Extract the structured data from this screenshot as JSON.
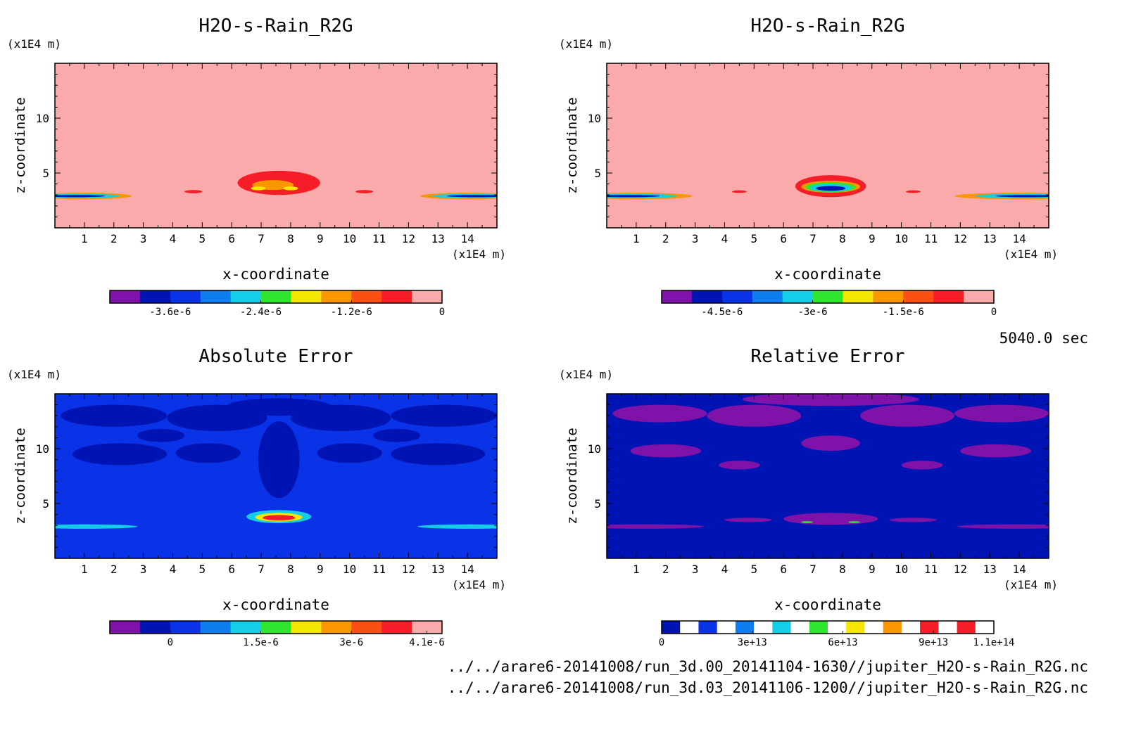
{
  "time_label": "5040.0 sec",
  "files": [
    "../../arare6-20141008/run_3d.00_20141104-1630//jupiter_H2O-s-Rain_R2G.nc",
    "../../arare6-20141008/run_3d.03_20141106-1200//jupiter_H2O-s-Rain_R2G.nc"
  ],
  "colors": {
    "purple": "#7f12a8",
    "navy": "#0014b4",
    "blue": "#0a32e6",
    "mid_blue": "#0e7df0",
    "cyan": "#14cde6",
    "green": "#2ee62e",
    "yellow": "#f5e600",
    "orange": "#fa9600",
    "red_orange": "#fa5014",
    "red": "#f51e28",
    "pink": "#faaaaa"
  },
  "chart_data": [
    {
      "type": "heatmap",
      "title": "H2O-s-Rain_R2G",
      "xlabel": "x-coordinate",
      "ylabel": "z-coordinate",
      "x_unit": "(x1E4 m)",
      "y_unit": "(x1E4 m)",
      "xlim": [
        0,
        15
      ],
      "ylim": [
        0,
        15
      ],
      "x_ticks": [
        1,
        2,
        3,
        4,
        5,
        6,
        7,
        8,
        9,
        10,
        11,
        12,
        13,
        14
      ],
      "y_ticks": [
        5,
        10
      ],
      "background": "pink",
      "colorbar": {
        "colors": [
          "purple",
          "navy",
          "blue",
          "mid_blue",
          "cyan",
          "green",
          "yellow",
          "orange",
          "red_orange",
          "red",
          "pink"
        ],
        "labels": [
          {
            "text": "-3.6e-6",
            "at": 2
          },
          {
            "text": "-2.4e-6",
            "at": 5
          },
          {
            "text": "-1.2e-6",
            "at": 8
          },
          {
            "text": "0",
            "at": 11
          }
        ]
      },
      "features": [
        {
          "x": 7.6,
          "y": 4.1,
          "rx": 1.4,
          "ry": 1.1,
          "color": "red"
        },
        {
          "x": 7.4,
          "y": 3.9,
          "rx": 0.7,
          "ry": 0.45,
          "color": "orange"
        },
        {
          "x": 6.9,
          "y": 3.6,
          "rx": 0.25,
          "ry": 0.18,
          "color": "yellow"
        },
        {
          "x": 8.0,
          "y": 3.6,
          "rx": 0.25,
          "ry": 0.18,
          "color": "yellow"
        },
        {
          "x": 4.7,
          "y": 3.3,
          "rx": 0.3,
          "ry": 0.15,
          "color": "red"
        },
        {
          "x": 10.5,
          "y": 3.3,
          "rx": 0.3,
          "ry": 0.15,
          "color": "red"
        },
        {
          "x": 1.0,
          "y": 2.9,
          "rx": 1.6,
          "ry": 0.3,
          "color": "orange"
        },
        {
          "x": 0.9,
          "y": 2.9,
          "rx": 1.3,
          "ry": 0.2,
          "color": "cyan"
        },
        {
          "x": 0.7,
          "y": 2.9,
          "rx": 1.0,
          "ry": 0.1,
          "color": "navy"
        },
        {
          "x": 14.0,
          "y": 2.9,
          "rx": 1.6,
          "ry": 0.3,
          "color": "orange"
        },
        {
          "x": 14.1,
          "y": 2.9,
          "rx": 1.3,
          "ry": 0.2,
          "color": "cyan"
        },
        {
          "x": 14.3,
          "y": 2.9,
          "rx": 1.0,
          "ry": 0.1,
          "color": "navy"
        }
      ]
    },
    {
      "type": "heatmap",
      "title": "H2O-s-Rain_R2G",
      "xlabel": "x-coordinate",
      "ylabel": "z-coordinate",
      "x_unit": "(x1E4 m)",
      "y_unit": "(x1E4 m)",
      "xlim": [
        0,
        15
      ],
      "ylim": [
        0,
        15
      ],
      "x_ticks": [
        1,
        2,
        3,
        4,
        5,
        6,
        7,
        8,
        9,
        10,
        11,
        12,
        13,
        14
      ],
      "y_ticks": [
        5,
        10
      ],
      "background": "pink",
      "colorbar": {
        "colors": [
          "purple",
          "navy",
          "blue",
          "mid_blue",
          "cyan",
          "green",
          "yellow",
          "orange",
          "red_orange",
          "red",
          "pink"
        ],
        "labels": [
          {
            "text": "-4.5e-6",
            "at": 2
          },
          {
            "text": "-3e-6",
            "at": 5
          },
          {
            "text": "-1.5e-6",
            "at": 8
          },
          {
            "text": "0",
            "at": 11
          }
        ]
      },
      "features": [
        {
          "x": 7.6,
          "y": 3.8,
          "rx": 1.2,
          "ry": 1.0,
          "color": "red"
        },
        {
          "x": 7.6,
          "y": 3.75,
          "rx": 1.0,
          "ry": 0.55,
          "color": "orange"
        },
        {
          "x": 7.6,
          "y": 3.7,
          "rx": 0.85,
          "ry": 0.45,
          "color": "green"
        },
        {
          "x": 7.6,
          "y": 3.65,
          "rx": 0.7,
          "ry": 0.35,
          "color": "cyan"
        },
        {
          "x": 7.6,
          "y": 3.6,
          "rx": 0.5,
          "ry": 0.22,
          "color": "navy"
        },
        {
          "x": 4.5,
          "y": 3.3,
          "rx": 0.25,
          "ry": 0.12,
          "color": "red"
        },
        {
          "x": 10.4,
          "y": 3.3,
          "rx": 0.25,
          "ry": 0.12,
          "color": "red"
        },
        {
          "x": 1.0,
          "y": 2.9,
          "rx": 1.9,
          "ry": 0.3,
          "color": "orange"
        },
        {
          "x": 0.9,
          "y": 2.9,
          "rx": 1.5,
          "ry": 0.2,
          "color": "cyan"
        },
        {
          "x": 0.7,
          "y": 2.9,
          "rx": 1.1,
          "ry": 0.1,
          "color": "navy"
        },
        {
          "x": 14.0,
          "y": 2.9,
          "rx": 2.2,
          "ry": 0.3,
          "color": "orange"
        },
        {
          "x": 14.1,
          "y": 2.9,
          "rx": 1.6,
          "ry": 0.2,
          "color": "cyan"
        },
        {
          "x": 14.3,
          "y": 2.9,
          "rx": 1.1,
          "ry": 0.1,
          "color": "navy"
        }
      ]
    },
    {
      "type": "heatmap",
      "title": "Absolute Error",
      "xlabel": "x-coordinate",
      "ylabel": "z-coordinate",
      "x_unit": "(x1E4 m)",
      "y_unit": "(x1E4 m)",
      "xlim": [
        0,
        15
      ],
      "ylim": [
        0,
        15
      ],
      "x_ticks": [
        1,
        2,
        3,
        4,
        5,
        6,
        7,
        8,
        9,
        10,
        11,
        12,
        13,
        14
      ],
      "y_ticks": [
        5,
        10
      ],
      "background": "blue",
      "colorbar": {
        "colors": [
          "purple",
          "navy",
          "blue",
          "mid_blue",
          "cyan",
          "green",
          "yellow",
          "orange",
          "red_orange",
          "red",
          "pink"
        ],
        "labels": [
          {
            "text": "0",
            "at": 2
          },
          {
            "text": "1.5e-6",
            "at": 5
          },
          {
            "text": "3e-6",
            "at": 8
          },
          {
            "text": "4.1e-6",
            "at": 10.5
          }
        ]
      },
      "features": [
        {
          "x": 2.0,
          "y": 13.0,
          "rx": 1.8,
          "ry": 1.0,
          "color": "navy"
        },
        {
          "x": 5.5,
          "y": 12.8,
          "rx": 1.7,
          "ry": 1.2,
          "color": "navy"
        },
        {
          "x": 9.7,
          "y": 12.8,
          "rx": 1.7,
          "ry": 1.2,
          "color": "navy"
        },
        {
          "x": 13.2,
          "y": 13.0,
          "rx": 1.8,
          "ry": 1.0,
          "color": "navy"
        },
        {
          "x": 2.2,
          "y": 9.5,
          "rx": 1.6,
          "ry": 1.0,
          "color": "navy"
        },
        {
          "x": 13.0,
          "y": 9.5,
          "rx": 1.6,
          "ry": 1.0,
          "color": "navy"
        },
        {
          "x": 5.2,
          "y": 9.6,
          "rx": 1.1,
          "ry": 0.9,
          "color": "navy"
        },
        {
          "x": 10.0,
          "y": 9.6,
          "rx": 1.1,
          "ry": 0.9,
          "color": "navy"
        },
        {
          "x": 7.6,
          "y": 9.0,
          "rx": 0.7,
          "ry": 3.5,
          "color": "navy"
        },
        {
          "x": 7.6,
          "y": 13.8,
          "rx": 1.8,
          "ry": 0.8,
          "color": "navy"
        },
        {
          "x": 3.6,
          "y": 11.2,
          "rx": 0.8,
          "ry": 0.6,
          "color": "navy"
        },
        {
          "x": 11.6,
          "y": 11.2,
          "rx": 0.8,
          "ry": 0.6,
          "color": "navy"
        },
        {
          "x": 7.6,
          "y": 3.8,
          "rx": 1.1,
          "ry": 0.6,
          "color": "cyan"
        },
        {
          "x": 7.6,
          "y": 3.75,
          "rx": 0.8,
          "ry": 0.4,
          "color": "yellow"
        },
        {
          "x": 7.6,
          "y": 3.7,
          "rx": 0.55,
          "ry": 0.25,
          "color": "red"
        },
        {
          "x": 1.0,
          "y": 2.9,
          "rx": 1.8,
          "ry": 0.2,
          "color": "cyan"
        },
        {
          "x": 14.1,
          "y": 2.9,
          "rx": 1.8,
          "ry": 0.2,
          "color": "cyan"
        }
      ]
    },
    {
      "type": "heatmap",
      "title": "Relative Error",
      "xlabel": "x-coordinate",
      "ylabel": "z-coordinate",
      "x_unit": "(x1E4 m)",
      "y_unit": "(x1E4 m)",
      "xlim": [
        0,
        15
      ],
      "ylim": [
        0,
        15
      ],
      "x_ticks": [
        1,
        2,
        3,
        4,
        5,
        6,
        7,
        8,
        9,
        10,
        11,
        12,
        13,
        14
      ],
      "y_ticks": [
        5,
        10
      ],
      "background": "navy",
      "colorbar": {
        "colors": [
          "navy",
          "white",
          "blue",
          "white",
          "mid_blue",
          "white",
          "cyan",
          "white",
          "green",
          "white",
          "yellow",
          "white",
          "orange",
          "white",
          "red",
          "white",
          "red",
          "white"
        ],
        "labels": [
          {
            "text": "0",
            "at": 0
          },
          {
            "text": "3e+13",
            "at": 3
          },
          {
            "text": "6e+13",
            "at": 6
          },
          {
            "text": "9e+13",
            "at": 9
          },
          {
            "text": "1.1e+14",
            "at": 11
          }
        ]
      },
      "features": [
        {
          "x": 1.8,
          "y": 13.2,
          "rx": 1.6,
          "ry": 0.8,
          "color": "purple"
        },
        {
          "x": 5.0,
          "y": 13.0,
          "rx": 1.6,
          "ry": 1.0,
          "color": "purple"
        },
        {
          "x": 10.2,
          "y": 13.0,
          "rx": 1.6,
          "ry": 1.0,
          "color": "purple"
        },
        {
          "x": 13.4,
          "y": 13.2,
          "rx": 1.6,
          "ry": 0.8,
          "color": "purple"
        },
        {
          "x": 7.6,
          "y": 14.5,
          "rx": 3.0,
          "ry": 0.6,
          "color": "purple"
        },
        {
          "x": 7.6,
          "y": 10.5,
          "rx": 1.0,
          "ry": 0.7,
          "color": "purple"
        },
        {
          "x": 2.0,
          "y": 9.8,
          "rx": 1.2,
          "ry": 0.6,
          "color": "purple"
        },
        {
          "x": 13.2,
          "y": 9.8,
          "rx": 1.2,
          "ry": 0.6,
          "color": "purple"
        },
        {
          "x": 4.5,
          "y": 8.5,
          "rx": 0.7,
          "ry": 0.4,
          "color": "purple"
        },
        {
          "x": 10.7,
          "y": 8.5,
          "rx": 0.7,
          "ry": 0.4,
          "color": "purple"
        },
        {
          "x": 7.6,
          "y": 3.6,
          "rx": 1.6,
          "ry": 0.55,
          "color": "purple"
        },
        {
          "x": 1.3,
          "y": 2.9,
          "rx": 2.0,
          "ry": 0.2,
          "color": "purple"
        },
        {
          "x": 13.9,
          "y": 2.9,
          "rx": 2.0,
          "ry": 0.2,
          "color": "purple"
        },
        {
          "x": 4.8,
          "y": 3.5,
          "rx": 0.8,
          "ry": 0.2,
          "color": "purple"
        },
        {
          "x": 10.4,
          "y": 3.5,
          "rx": 0.8,
          "ry": 0.2,
          "color": "purple"
        },
        {
          "x": 6.8,
          "y": 3.3,
          "rx": 0.2,
          "ry": 0.09,
          "color": "green"
        },
        {
          "x": 8.4,
          "y": 3.3,
          "rx": 0.2,
          "ry": 0.09,
          "color": "green"
        }
      ]
    }
  ]
}
